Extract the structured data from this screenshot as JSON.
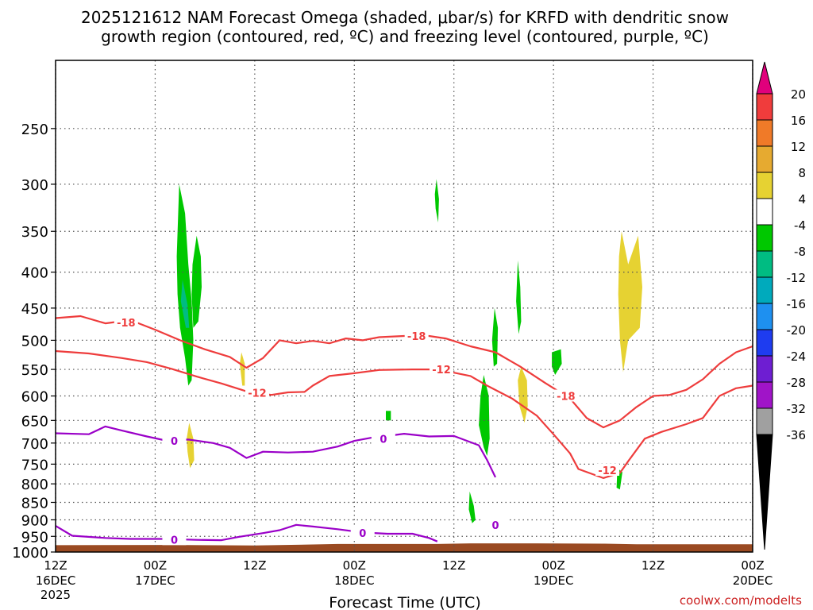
{
  "title": {
    "line1": "2025121612 NAM Forecast Omega (shaded, μbar/s) for KRFD with dendritic snow",
    "line2": "growth region (contoured, red, ºC) and freezing level (contoured, purple, ºC)"
  },
  "credit": "coolwx.com/modelts",
  "chart_data": {
    "type": "heatmap",
    "subtype": "time-height cross section",
    "xlabel": "Forecast Time (UTC)",
    "ylabel": "",
    "x_ticks": [
      {
        "t": 0,
        "label": "12Z",
        "sub": "16DEC",
        "sub2": "2025"
      },
      {
        "t": 12,
        "label": "00Z",
        "sub": "17DEC",
        "sub2": ""
      },
      {
        "t": 24,
        "label": "12Z",
        "sub": "",
        "sub2": ""
      },
      {
        "t": 36,
        "label": "00Z",
        "sub": "18DEC",
        "sub2": ""
      },
      {
        "t": 48,
        "label": "12Z",
        "sub": "",
        "sub2": ""
      },
      {
        "t": 60,
        "label": "00Z",
        "sub": "19DEC",
        "sub2": ""
      },
      {
        "t": 72,
        "label": "12Z",
        "sub": "",
        "sub2": ""
      },
      {
        "t": 84,
        "label": "00Z",
        "sub": "20DEC",
        "sub2": ""
      }
    ],
    "xlim": [
      0,
      84
    ],
    "y_ticks": [
      250,
      300,
      350,
      400,
      450,
      500,
      550,
      600,
      650,
      700,
      750,
      800,
      850,
      900,
      950,
      1000
    ],
    "ylim": [
      200,
      1000
    ],
    "y_scale": "log",
    "y_reversed": true,
    "grid": true,
    "colorbar": {
      "labels": [
        20,
        16,
        12,
        8,
        4,
        -4,
        -8,
        -12,
        -16,
        -20,
        -24,
        -28,
        -32,
        -36
      ],
      "colors": [
        "#e0007c",
        "#f03c3c",
        "#f07a28",
        "#e6aa30",
        "#e6d232",
        "#ffffff",
        "#00c800",
        "#00bc82",
        "#00aabc",
        "#1e90f0",
        "#1e3cf0",
        "#6e1ed2",
        "#a014c8",
        "#a0a0a0",
        "#000000"
      ]
    },
    "series": [
      {
        "name": "-18",
        "color": "#ee3c3c",
        "labels": [
          {
            "t": 8.5,
            "p": 472,
            "text": "-18"
          },
          {
            "t": 43.5,
            "p": 493,
            "text": "-18"
          },
          {
            "t": 61.5,
            "p": 600,
            "text": "-18"
          }
        ],
        "points": [
          [
            0,
            465
          ],
          [
            3,
            462
          ],
          [
            6,
            473
          ],
          [
            9,
            468
          ],
          [
            12,
            483
          ],
          [
            15,
            500
          ],
          [
            18,
            515
          ],
          [
            21,
            528
          ],
          [
            23,
            547
          ],
          [
            25,
            530
          ],
          [
            27,
            500
          ],
          [
            29,
            505
          ],
          [
            31,
            501
          ],
          [
            33,
            505
          ],
          [
            35,
            497
          ],
          [
            37,
            500
          ],
          [
            39,
            495
          ],
          [
            42,
            493
          ],
          [
            45,
            493
          ],
          [
            47,
            497
          ],
          [
            50,
            510
          ],
          [
            53,
            520
          ],
          [
            56,
            545
          ],
          [
            59,
            575
          ],
          [
            62,
            605
          ],
          [
            64,
            645
          ],
          [
            66,
            665
          ],
          [
            68,
            650
          ],
          [
            70,
            622
          ],
          [
            72,
            600
          ],
          [
            74,
            598
          ],
          [
            76,
            588
          ],
          [
            78,
            568
          ],
          [
            80,
            540
          ],
          [
            82,
            520
          ],
          [
            84,
            510
          ]
        ]
      },
      {
        "name": "-12",
        "color": "#ee3c3c",
        "labels": [
          {
            "t": 24.3,
            "p": 594,
            "text": "-12"
          },
          {
            "t": 46.5,
            "p": 550,
            "text": "-12"
          },
          {
            "t": 66.5,
            "p": 765,
            "text": "-12"
          }
        ],
        "points": [
          [
            0,
            518
          ],
          [
            4,
            522
          ],
          [
            8,
            530
          ],
          [
            11,
            537
          ],
          [
            14,
            549
          ],
          [
            17,
            563
          ],
          [
            20,
            576
          ],
          [
            23,
            591
          ],
          [
            26,
            598
          ],
          [
            28,
            593
          ],
          [
            30,
            592
          ],
          [
            31,
            580
          ],
          [
            33,
            562
          ],
          [
            36,
            557
          ],
          [
            39,
            551
          ],
          [
            43,
            550
          ],
          [
            45,
            550
          ],
          [
            48,
            556
          ],
          [
            50,
            562
          ],
          [
            52,
            580
          ],
          [
            55,
            605
          ],
          [
            58,
            640
          ],
          [
            60,
            680
          ],
          [
            62,
            724
          ],
          [
            63,
            762
          ],
          [
            66,
            785
          ],
          [
            68,
            772
          ],
          [
            69,
            743
          ],
          [
            71,
            690
          ],
          [
            73,
            675
          ],
          [
            76,
            658
          ],
          [
            78,
            645
          ],
          [
            80,
            600
          ],
          [
            82,
            585
          ],
          [
            84,
            580
          ]
        ]
      },
      {
        "name": "0",
        "color": "#9a00c8",
        "labels": [
          {
            "t": 14.3,
            "p": 695,
            "text": "0"
          },
          {
            "t": 39.5,
            "p": 690,
            "text": "0"
          },
          {
            "t": 14.3,
            "p": 960,
            "text": "0"
          },
          {
            "t": 37,
            "p": 940,
            "text": "0"
          },
          {
            "t": 53,
            "p": 915,
            "text": "0"
          }
        ],
        "points": [
          [
            0,
            678
          ],
          [
            4,
            680
          ],
          [
            6,
            663
          ],
          [
            8,
            672
          ],
          [
            11,
            685
          ],
          [
            13,
            693
          ],
          [
            16,
            692
          ],
          [
            19,
            700
          ],
          [
            21,
            711
          ],
          [
            23,
            735
          ],
          [
            25,
            720
          ],
          [
            28,
            722
          ],
          [
            31,
            720
          ],
          [
            34,
            708
          ],
          [
            36,
            695
          ],
          [
            38,
            688
          ],
          [
            40,
            684
          ],
          [
            42,
            679
          ],
          [
            45,
            685
          ],
          [
            48,
            684
          ],
          [
            51,
            705
          ],
          [
            52,
            740
          ],
          [
            53,
            783
          ]
        ]
      },
      {
        "name": "0b",
        "color": "#9a00c8",
        "labels": [],
        "points": [
          [
            0,
            918
          ],
          [
            2,
            948
          ],
          [
            6,
            955
          ],
          [
            9,
            958
          ],
          [
            13,
            958
          ],
          [
            17,
            961
          ],
          [
            20,
            962
          ],
          [
            22,
            952
          ],
          [
            25,
            940
          ],
          [
            27,
            931
          ],
          [
            29,
            915
          ],
          [
            31,
            920
          ],
          [
            34,
            928
          ],
          [
            37,
            938
          ],
          [
            40,
            942
          ],
          [
            43,
            942
          ],
          [
            45,
            955
          ],
          [
            46,
            966
          ]
        ]
      }
    ],
    "shading": [
      {
        "value": -6,
        "color": "#00c800",
        "shape": [
          [
            14.9,
            300
          ],
          [
            15.6,
            330
          ],
          [
            16.0,
            390
          ],
          [
            16.4,
            440
          ],
          [
            16.6,
            500
          ],
          [
            16.4,
            570
          ],
          [
            16.0,
            580
          ],
          [
            15.6,
            530
          ],
          [
            15.0,
            480
          ],
          [
            14.7,
            430
          ],
          [
            14.6,
            380
          ]
        ]
      },
      {
        "value": -6,
        "color": "#00c800",
        "shape": [
          [
            17.0,
            355
          ],
          [
            17.5,
            380
          ],
          [
            17.6,
            420
          ],
          [
            17.2,
            470
          ],
          [
            16.6,
            480
          ],
          [
            16.4,
            430
          ],
          [
            16.5,
            390
          ]
        ]
      },
      {
        "value": -10,
        "color": "#00bc82",
        "shape": [
          [
            15.3,
            410
          ],
          [
            15.9,
            445
          ],
          [
            16.1,
            480
          ],
          [
            15.7,
            480
          ],
          [
            15.1,
            440
          ]
        ]
      },
      {
        "value": 6,
        "color": "#e6d232",
        "shape": [
          [
            22.4,
            520
          ],
          [
            22.8,
            540
          ],
          [
            22.8,
            580
          ],
          [
            22.5,
            580
          ],
          [
            22.2,
            540
          ]
        ]
      },
      {
        "value": 6,
        "color": "#e6d232",
        "shape": [
          [
            16.1,
            655
          ],
          [
            16.6,
            690
          ],
          [
            16.7,
            740
          ],
          [
            16.2,
            760
          ],
          [
            15.9,
            720
          ],
          [
            15.8,
            690
          ]
        ]
      },
      {
        "value": -6,
        "color": "#00c800",
        "shape": [
          [
            45.9,
            295
          ],
          [
            46.2,
            315
          ],
          [
            46.1,
            340
          ],
          [
            45.8,
            325
          ],
          [
            45.7,
            310
          ]
        ]
      },
      {
        "value": -6,
        "color": "#00c800",
        "shape": [
          [
            39.8,
            630
          ],
          [
            40.4,
            630
          ],
          [
            40.4,
            650
          ],
          [
            39.8,
            650
          ]
        ]
      },
      {
        "value": -6,
        "color": "#00c800",
        "shape": [
          [
            51.6,
            560
          ],
          [
            52.2,
            600
          ],
          [
            52.3,
            690
          ],
          [
            52.0,
            730
          ],
          [
            51.6,
            710
          ],
          [
            51.0,
            660
          ],
          [
            51.2,
            600
          ]
        ]
      },
      {
        "value": -6,
        "color": "#00c800",
        "shape": [
          [
            52.9,
            450
          ],
          [
            53.3,
            480
          ],
          [
            53.2,
            540
          ],
          [
            52.8,
            545
          ],
          [
            52.6,
            500
          ]
        ]
      },
      {
        "value": -6,
        "color": "#00c800",
        "shape": [
          [
            55.7,
            385
          ],
          [
            56.0,
            420
          ],
          [
            56.1,
            470
          ],
          [
            55.8,
            490
          ],
          [
            55.5,
            440
          ]
        ]
      },
      {
        "value": -6,
        "color": "#00c800",
        "shape": [
          [
            49.9,
            820
          ],
          [
            50.4,
            860
          ],
          [
            50.6,
            900
          ],
          [
            50.2,
            910
          ],
          [
            49.8,
            870
          ]
        ]
      },
      {
        "value": -6,
        "color": "#00c800",
        "shape": [
          [
            59.8,
            520
          ],
          [
            60.9,
            515
          ],
          [
            61.0,
            540
          ],
          [
            60.2,
            560
          ],
          [
            59.8,
            545
          ]
        ]
      },
      {
        "value": -6,
        "color": "#00c800",
        "shape": [
          [
            67.7,
            760
          ],
          [
            68.3,
            770
          ],
          [
            68.0,
            815
          ],
          [
            67.6,
            810
          ]
        ]
      },
      {
        "value": 6,
        "color": "#e6d232",
        "shape": [
          [
            56.1,
            545
          ],
          [
            56.8,
            570
          ],
          [
            56.9,
            620
          ],
          [
            56.5,
            655
          ],
          [
            55.9,
            620
          ],
          [
            55.7,
            570
          ]
        ]
      },
      {
        "value": 6,
        "color": "#e6d232",
        "shape": [
          [
            68.2,
            350
          ],
          [
            69.0,
            390
          ],
          [
            70.2,
            355
          ],
          [
            70.7,
            420
          ],
          [
            70.4,
            480
          ],
          [
            69.0,
            500
          ],
          [
            68.4,
            555
          ],
          [
            68.0,
            500
          ],
          [
            67.8,
            430
          ],
          [
            67.9,
            380
          ]
        ]
      }
    ]
  }
}
